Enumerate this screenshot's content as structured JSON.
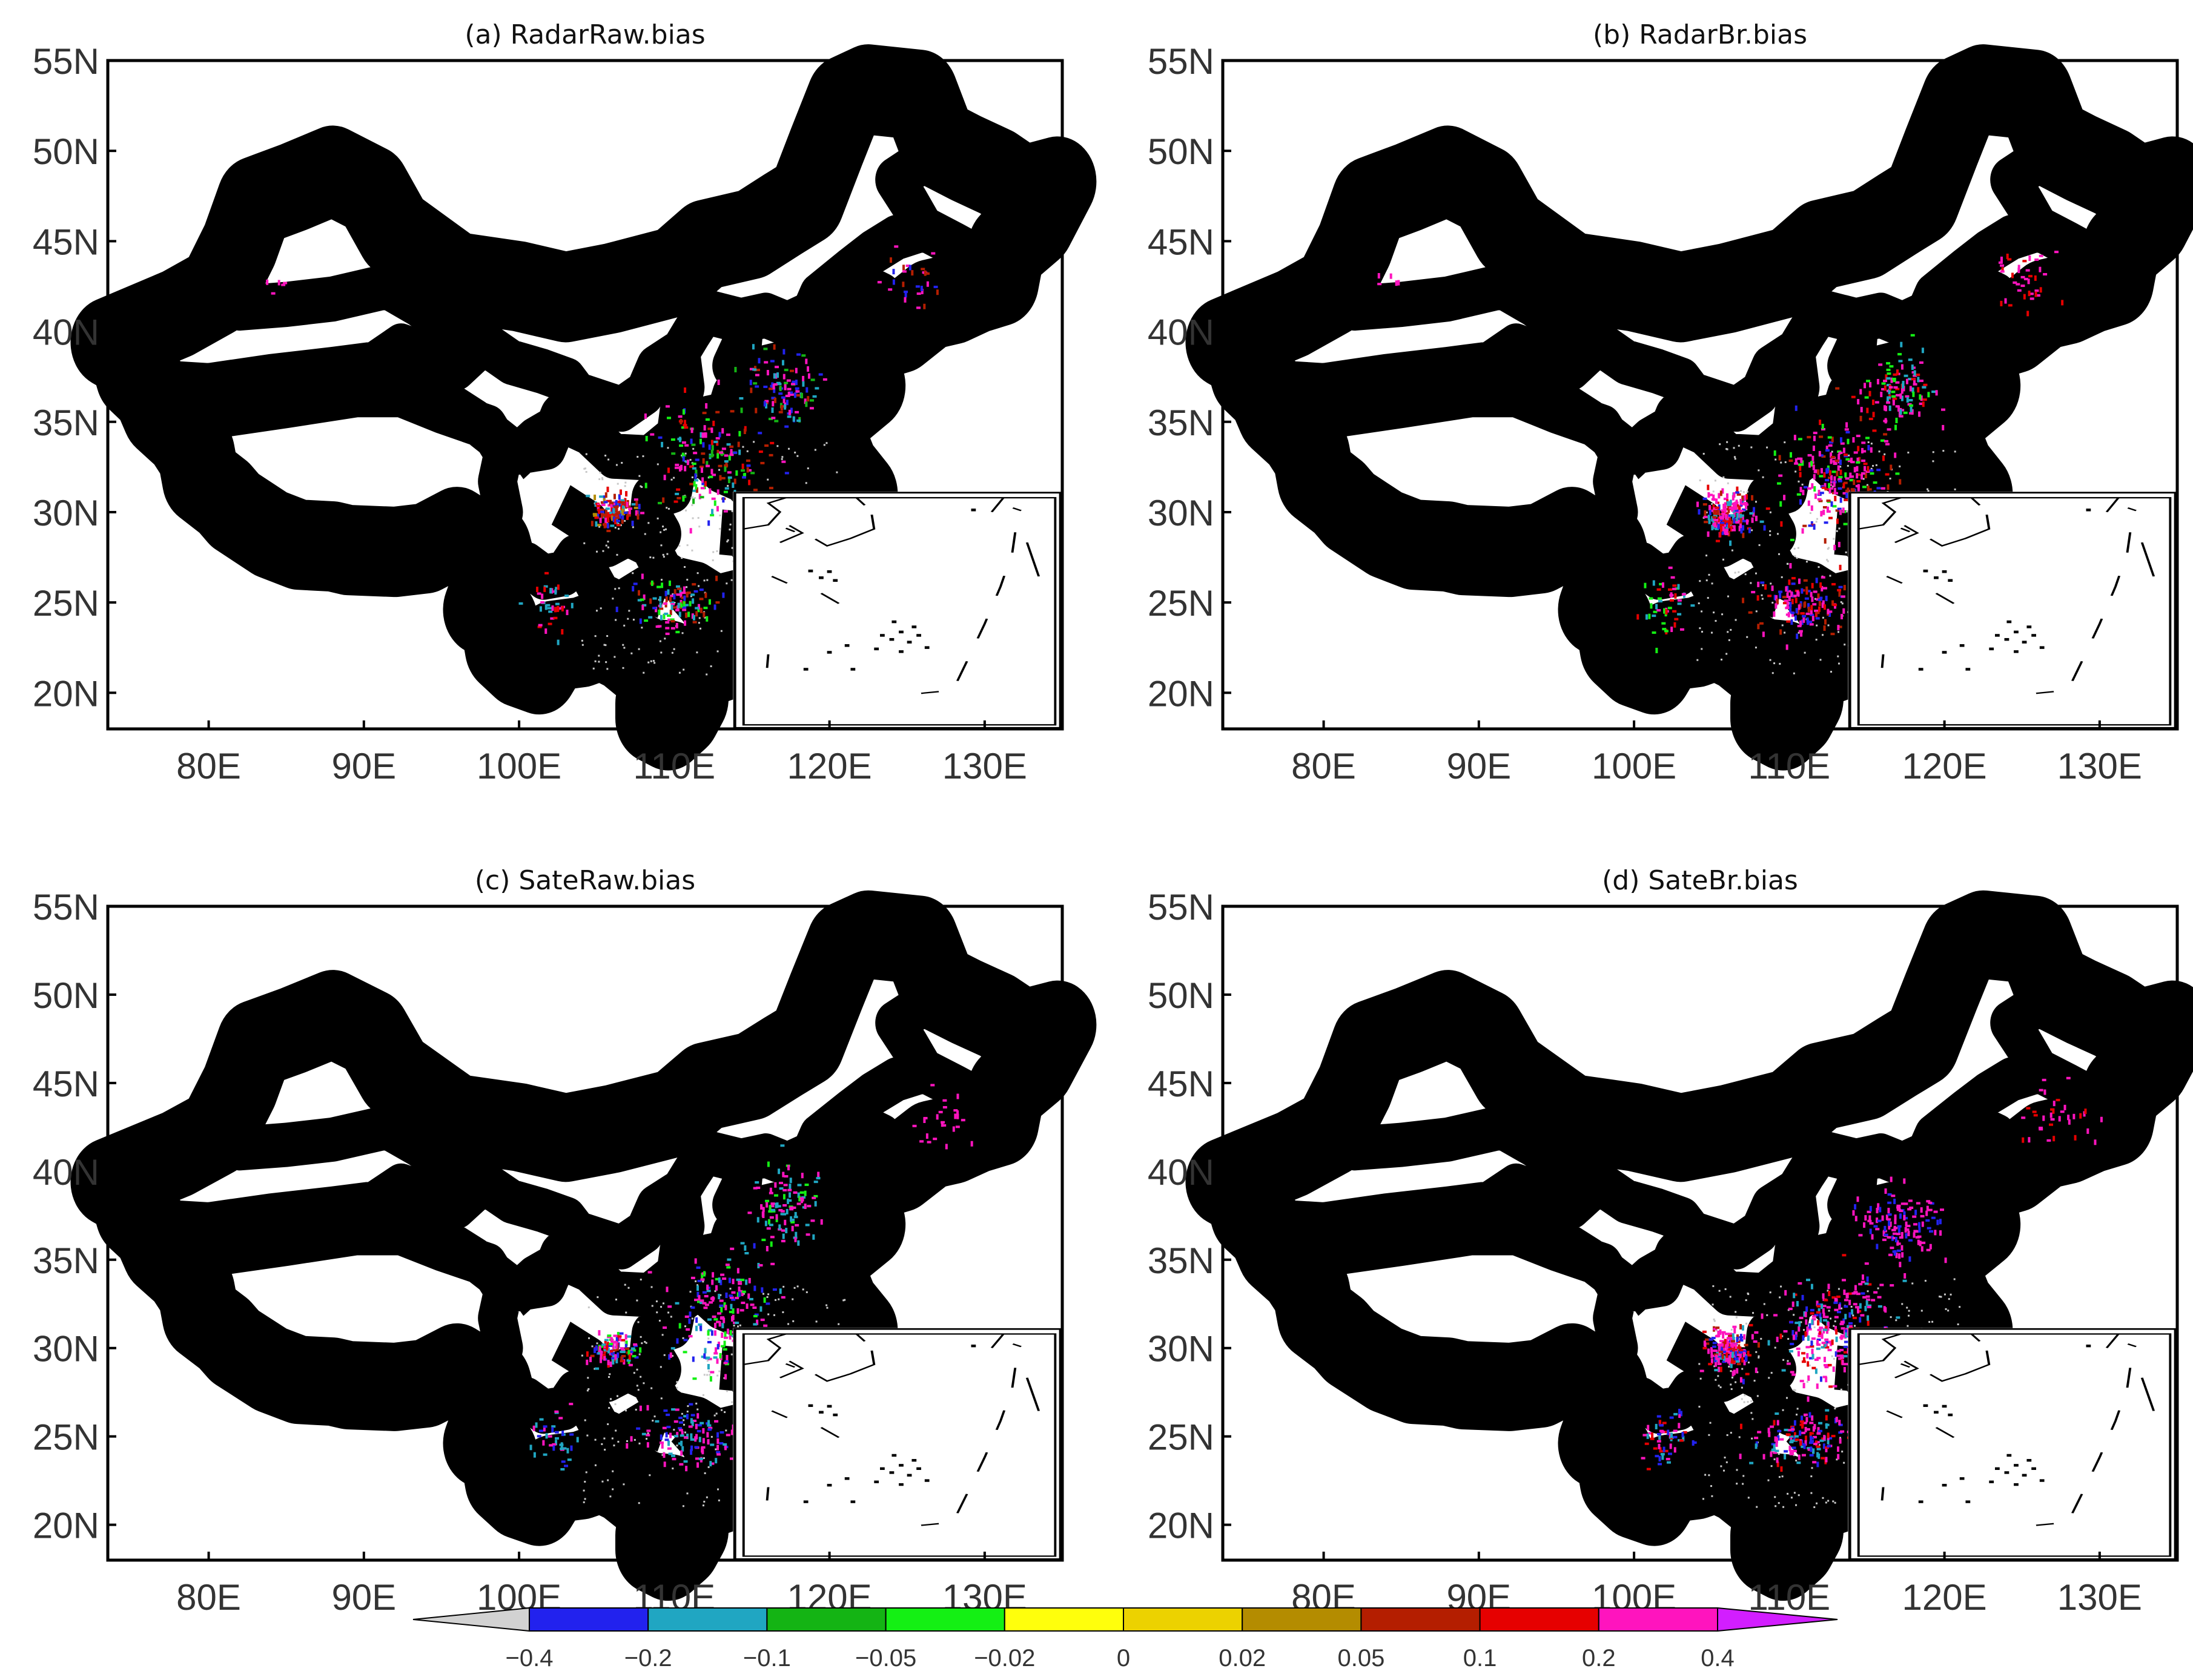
{
  "colors": {
    "frame": "#000000",
    "tick_text": "#333333",
    "grey_background_dots": "#c8c8c8"
  },
  "chart_data": [
    {
      "type": "scatter",
      "title": "(a)  RadarRaw.bias",
      "xlabel": "",
      "ylabel": "",
      "xlim": [
        73.5,
        135
      ],
      "ylim": [
        18,
        55
      ],
      "x_ticks": [
        "80E",
        "90E",
        "100E",
        "110E",
        "120E",
        "130E"
      ],
      "y_ticks": [
        "55N",
        "50N",
        "45N",
        "40N",
        "35N",
        "30N",
        "25N",
        "20N"
      ],
      "seed": 11,
      "clusters": [
        {
          "lon": 106,
          "lat": 30.2,
          "sd_lon": 1.8,
          "sd_lat": 1.2,
          "n": 150,
          "pal": [
            9,
            9,
            8,
            8,
            7,
            10,
            1,
            2
          ]
        },
        {
          "lon": 112,
          "lat": 33,
          "sd_lon": 4.5,
          "sd_lat": 4,
          "n": 180,
          "pal": [
            10,
            10,
            1,
            2,
            8,
            3,
            9,
            4
          ]
        },
        {
          "lon": 117,
          "lat": 37,
          "sd_lon": 2.8,
          "sd_lat": 2.5,
          "n": 110,
          "pal": [
            10,
            10,
            1,
            2,
            3,
            8
          ]
        },
        {
          "lon": 110,
          "lat": 25,
          "sd_lon": 4,
          "sd_lat": 2,
          "n": 110,
          "pal": [
            10,
            10,
            8,
            1,
            2,
            4
          ]
        },
        {
          "lon": 102,
          "lat": 25,
          "sd_lon": 2,
          "sd_lat": 2,
          "n": 40,
          "pal": [
            10,
            9,
            2
          ]
        },
        {
          "lon": 125,
          "lat": 43,
          "sd_lon": 3,
          "sd_lat": 2.5,
          "n": 30,
          "pal": [
            10,
            8,
            1
          ]
        },
        {
          "lon": 84,
          "lat": 43,
          "sd_lon": 1,
          "sd_lat": 1,
          "n": 5,
          "pal": [
            10
          ]
        }
      ]
    },
    {
      "type": "scatter",
      "title": "(b)  RadarBr.bias",
      "xlabel": "",
      "ylabel": "",
      "xlim": [
        73.5,
        135
      ],
      "ylim": [
        18,
        55
      ],
      "x_ticks": [
        "80E",
        "90E",
        "100E",
        "110E",
        "120E",
        "130E"
      ],
      "y_ticks": [
        "55N",
        "50N",
        "45N",
        "40N",
        "35N",
        "30N",
        "25N",
        "20N"
      ],
      "seed": 23,
      "clusters": [
        {
          "lon": 106,
          "lat": 30,
          "sd_lon": 2,
          "sd_lat": 1.5,
          "n": 200,
          "pal": [
            10,
            10,
            10,
            9,
            1,
            8,
            2
          ]
        },
        {
          "lon": 113,
          "lat": 32,
          "sd_lon": 4.5,
          "sd_lat": 4,
          "n": 260,
          "pal": [
            10,
            10,
            10,
            9,
            8,
            4,
            1
          ]
        },
        {
          "lon": 117,
          "lat": 37,
          "sd_lon": 3,
          "sd_lat": 2.5,
          "n": 120,
          "pal": [
            10,
            10,
            9,
            4,
            2
          ]
        },
        {
          "lon": 111,
          "lat": 25,
          "sd_lon": 4,
          "sd_lat": 2,
          "n": 140,
          "pal": [
            10,
            10,
            9,
            8,
            1
          ]
        },
        {
          "lon": 102,
          "lat": 25,
          "sd_lon": 2,
          "sd_lat": 2,
          "n": 50,
          "pal": [
            10,
            4,
            2,
            9
          ]
        },
        {
          "lon": 125,
          "lat": 43,
          "sd_lon": 3,
          "sd_lat": 2.5,
          "n": 40,
          "pal": [
            10,
            10,
            9
          ]
        },
        {
          "lon": 84,
          "lat": 43,
          "sd_lon": 1,
          "sd_lat": 1,
          "n": 5,
          "pal": [
            10
          ]
        }
      ]
    },
    {
      "type": "scatter",
      "title": "(c)  SateRaw.bias",
      "xlabel": "",
      "ylabel": "",
      "xlim": [
        73.5,
        135
      ],
      "ylim": [
        18,
        55
      ],
      "x_ticks": [
        "80E",
        "90E",
        "100E",
        "110E",
        "120E",
        "130E"
      ],
      "y_ticks": [
        "55N",
        "50N",
        "45N",
        "40N",
        "35N",
        "30N",
        "25N",
        "20N"
      ],
      "seed": 37,
      "clusters": [
        {
          "lon": 106,
          "lat": 30,
          "sd_lon": 1.8,
          "sd_lat": 1.2,
          "n": 110,
          "pal": [
            10,
            10,
            9,
            1,
            2,
            4,
            8
          ]
        },
        {
          "lon": 113,
          "lat": 32,
          "sd_lon": 4.5,
          "sd_lat": 4,
          "n": 200,
          "pal": [
            10,
            10,
            10,
            2,
            1,
            4
          ]
        },
        {
          "lon": 117,
          "lat": 38,
          "sd_lon": 3,
          "sd_lat": 3,
          "n": 110,
          "pal": [
            10,
            10,
            2,
            4
          ]
        },
        {
          "lon": 111,
          "lat": 25,
          "sd_lon": 4,
          "sd_lat": 2,
          "n": 110,
          "pal": [
            10,
            10,
            2,
            1
          ]
        },
        {
          "lon": 102,
          "lat": 25,
          "sd_lon": 2,
          "sd_lat": 2,
          "n": 40,
          "pal": [
            10,
            2,
            1
          ]
        },
        {
          "lon": 127,
          "lat": 43,
          "sd_lon": 3,
          "sd_lat": 2.5,
          "n": 25,
          "pal": [
            10,
            10
          ]
        }
      ]
    },
    {
      "type": "scatter",
      "title": "(d)  SateBr.bias",
      "xlabel": "",
      "ylabel": "",
      "xlim": [
        73.5,
        135
      ],
      "ylim": [
        18,
        55
      ],
      "x_ticks": [
        "80E",
        "90E",
        "100E",
        "110E",
        "120E",
        "130E"
      ],
      "y_ticks": [
        "55N",
        "50N",
        "45N",
        "40N",
        "35N",
        "30N",
        "25N",
        "20N"
      ],
      "seed": 53,
      "clusters": [
        {
          "lon": 106,
          "lat": 30,
          "sd_lon": 2,
          "sd_lat": 1.5,
          "n": 180,
          "pal": [
            10,
            10,
            10,
            9,
            1,
            2,
            8
          ]
        },
        {
          "lon": 113,
          "lat": 31,
          "sd_lon": 5,
          "sd_lat": 4,
          "n": 300,
          "pal": [
            10,
            10,
            10,
            10,
            9,
            1,
            2
          ]
        },
        {
          "lon": 117,
          "lat": 37,
          "sd_lon": 3,
          "sd_lat": 2.5,
          "n": 130,
          "pal": [
            10,
            10,
            10,
            1
          ]
        },
        {
          "lon": 111,
          "lat": 25,
          "sd_lon": 4,
          "sd_lat": 2,
          "n": 150,
          "pal": [
            10,
            10,
            9,
            1,
            2
          ]
        },
        {
          "lon": 102,
          "lat": 25,
          "sd_lon": 2,
          "sd_lat": 2,
          "n": 60,
          "pal": [
            10,
            2,
            1,
            9
          ]
        },
        {
          "lon": 127,
          "lat": 43,
          "sd_lon": 3,
          "sd_lat": 2.5,
          "n": 35,
          "pal": [
            10,
            10,
            9
          ]
        }
      ]
    }
  ],
  "colorbar": {
    "tick_labels": [
      "-0.4",
      "-0.2",
      "-0.1",
      "-0.05",
      "-0.02",
      "0",
      "0.02",
      "0.05",
      "0.1",
      "0.2",
      "0.4"
    ],
    "under_color": "#d2d2d2",
    "over_color": "#d21eff",
    "colors": [
      "#2222ee",
      "#20a6c2",
      "#14b414",
      "#14f014",
      "#ffff0c",
      "#ecd200",
      "#b48c00",
      "#b41e00",
      "#e60000",
      "#ff14be"
    ]
  }
}
